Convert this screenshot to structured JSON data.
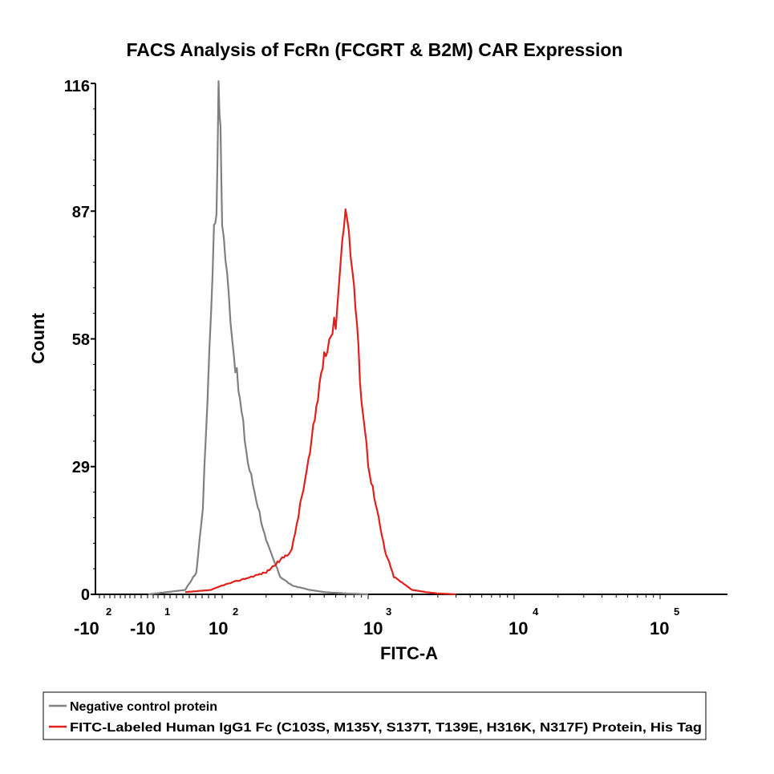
{
  "chart_data": {
    "type": "line",
    "title": "FACS Analysis of FcRn (FCGRT & B2M) CAR Expression",
    "xlabel": "FITC-A",
    "ylabel": "Count",
    "yticks": [
      "0",
      "29",
      "58",
      "87",
      "116"
    ],
    "ylim": [
      0,
      116
    ],
    "xscale": "biexponential (log)",
    "xtick_labels": [
      {
        "base": "-10",
        "exp": "2"
      },
      {
        "base": "-10",
        "exp": "1"
      },
      {
        "base": "10",
        "exp": "2"
      },
      {
        "base": "10",
        "exp": "3"
      },
      {
        "base": "10",
        "exp": "4"
      },
      {
        "base": "10",
        "exp": "5"
      }
    ],
    "legend_position": "bottom",
    "series": [
      {
        "name": "Negative control protein",
        "color": "#808080",
        "x": [
          1,
          10,
          20,
          30,
          40,
          50,
          60,
          70,
          80,
          90,
          100,
          120,
          150,
          200,
          250,
          300,
          400,
          500,
          700,
          1000
        ],
        "y": [
          0,
          1,
          5,
          20,
          45,
          65,
          83,
          87,
          115,
          105,
          85,
          55,
          30,
          12,
          4,
          2,
          1,
          0.5,
          0.2,
          0
        ]
      },
      {
        "name": "FITC-Labeled Human IgG1 Fc (C103S, M135Y, S137T, T139E, H316K, N317F) Protein, His Tag",
        "color": "#e0201c",
        "x": [
          10,
          50,
          100,
          200,
          300,
          400,
          500,
          600,
          700,
          800,
          900,
          1000,
          1100,
          1300,
          1500,
          2000,
          2500,
          3000,
          4000
        ],
        "y": [
          0.5,
          1,
          2,
          5,
          10,
          32,
          55,
          62,
          89,
          70,
          45,
          30,
          22,
          10,
          4,
          1,
          0.5,
          0.2,
          0
        ]
      }
    ]
  }
}
